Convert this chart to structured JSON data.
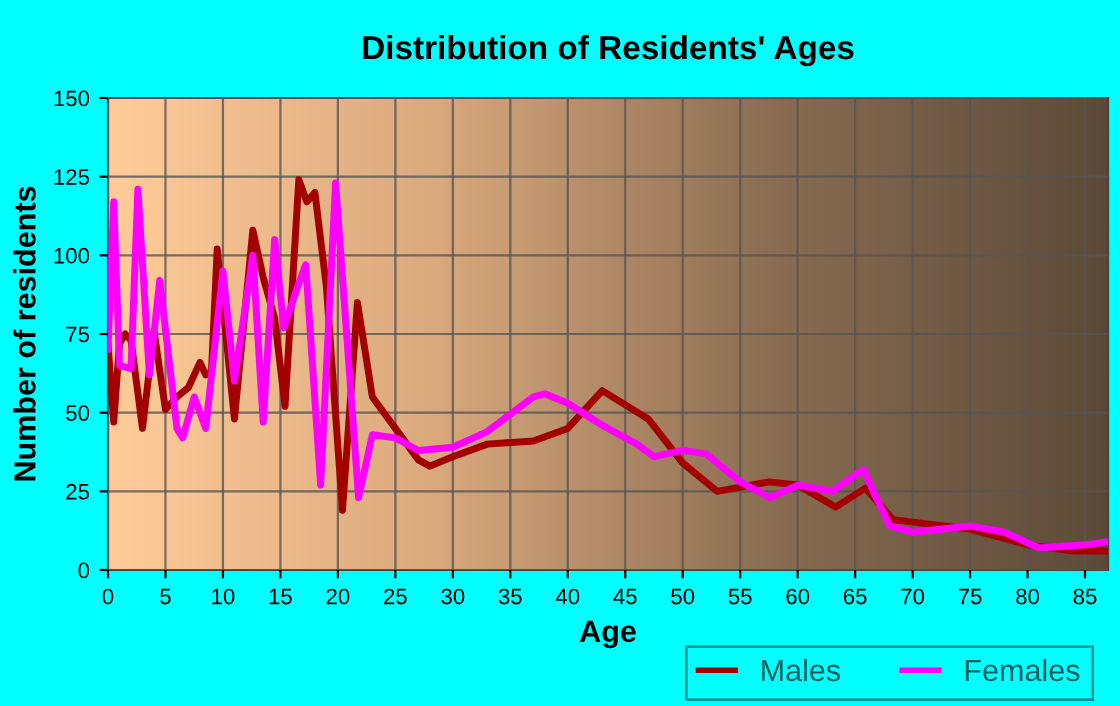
{
  "chart_data": {
    "type": "line",
    "title": "Distribution of Residents' Ages",
    "xlabel": "Age",
    "ylabel": "Number of residents",
    "xlim": [
      0,
      87
    ],
    "xticks": [
      0,
      5,
      10,
      15,
      20,
      25,
      30,
      35,
      40,
      45,
      50,
      55,
      60,
      65,
      70,
      75,
      80,
      85
    ],
    "ylim": [
      0,
      150
    ],
    "yticks": [
      0,
      25,
      50,
      75,
      100,
      125,
      150
    ],
    "grid": true,
    "legend": "bottom right",
    "line_style": "solid",
    "series": [
      {
        "name": "Males",
        "color": "#a30000",
        "x": [
          0,
          0.5,
          1,
          1.5,
          2,
          3,
          4,
          5,
          6,
          7,
          8,
          8.5,
          9,
          9.5,
          11,
          12.6,
          13.5,
          14.5,
          15.4,
          16.6,
          17.3,
          18,
          19,
          20.4,
          21.7,
          23,
          25,
          27,
          28,
          30,
          33,
          37,
          40,
          43,
          47,
          50,
          53,
          57.5,
          60,
          63.3,
          65.9,
          68.3,
          75,
          80,
          84,
          87
        ],
        "values": [
          72,
          47,
          72,
          75,
          73,
          45,
          76,
          51,
          55,
          58,
          66,
          62,
          63,
          102,
          48,
          108,
          93,
          80,
          52,
          124,
          117,
          120,
          90,
          19,
          85,
          55,
          45,
          35,
          33,
          36,
          40,
          41,
          45,
          57,
          48,
          34,
          25,
          28,
          27,
          20,
          26,
          16,
          13,
          8,
          6,
          6
        ]
      },
      {
        "name": "Females",
        "color": "#ff00ff",
        "x": [
          0,
          0.5,
          1,
          2,
          2.6,
          3.6,
          4.5,
          6,
          6.5,
          7.5,
          8.5,
          10,
          11,
          12.6,
          13.5,
          14.5,
          15.3,
          16.5,
          17.2,
          18.5,
          19.8,
          21.8,
          23,
          25,
          27,
          30,
          33,
          37,
          38,
          40,
          43,
          46,
          47.5,
          50,
          52,
          55,
          57.6,
          60,
          63,
          65.7,
          68,
          70,
          75,
          78,
          81,
          85,
          87
        ],
        "values": [
          70,
          117,
          65,
          64,
          121,
          62,
          92,
          45,
          42,
          55,
          45,
          95,
          60,
          100,
          47,
          105,
          77,
          90,
          97,
          27,
          123,
          23,
          43,
          42,
          38,
          39,
          44,
          55,
          56,
          53,
          46,
          40,
          36,
          38,
          37,
          28,
          23,
          27,
          25,
          32,
          14,
          12,
          14,
          12,
          7,
          8,
          9
        ]
      }
    ]
  }
}
